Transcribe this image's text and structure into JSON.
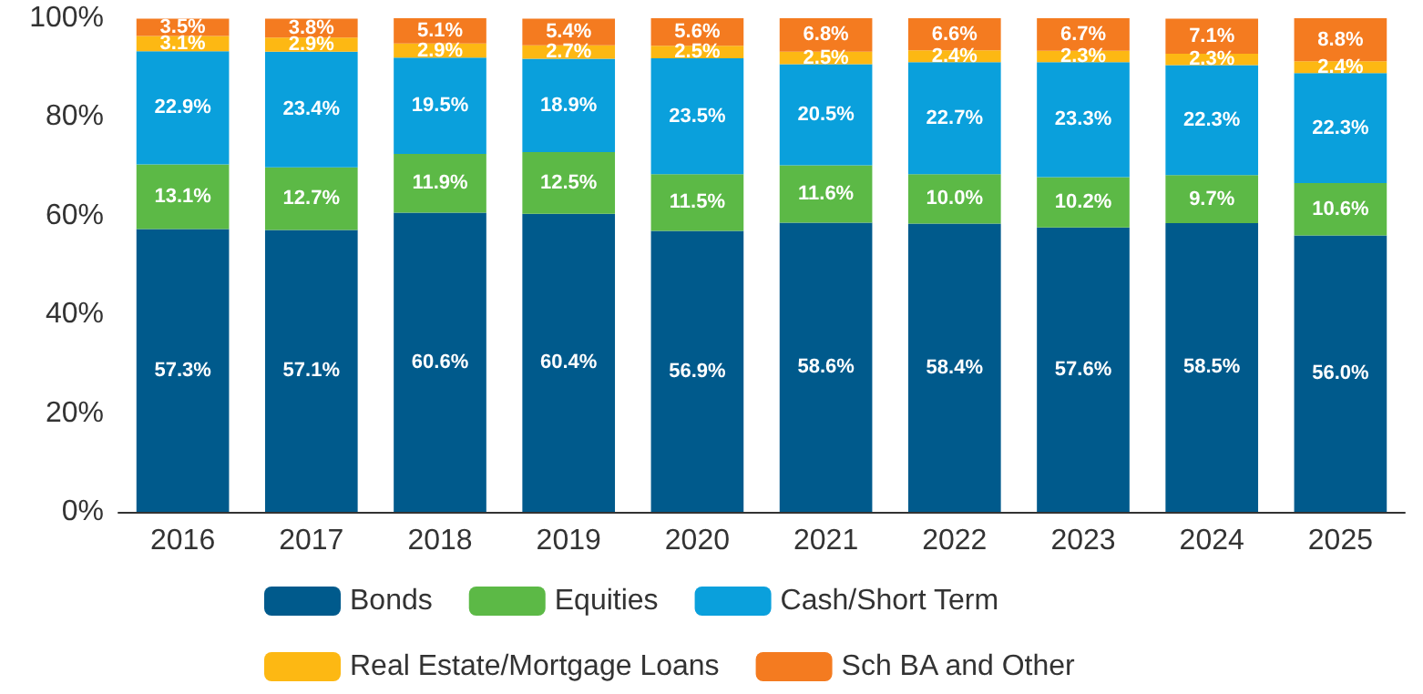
{
  "chart_data": {
    "type": "bar",
    "stacked": true,
    "categories": [
      "2016",
      "2017",
      "2018",
      "2019",
      "2020",
      "2021",
      "2022",
      "2023",
      "2024",
      "2025"
    ],
    "series": [
      {
        "name": "Bonds",
        "color": "#005a8c",
        "values": [
          57.3,
          57.1,
          60.6,
          60.4,
          56.9,
          58.6,
          58.4,
          57.6,
          58.5,
          56.0
        ],
        "value_labels": [
          "57.3%",
          "57.1%",
          "60.6%",
          "60.4%",
          "56.9%",
          "58.6%",
          "58.4%",
          "57.6%",
          "58.5%",
          "56.0%"
        ]
      },
      {
        "name": "Equities",
        "color": "#5cb946",
        "values": [
          13.1,
          12.7,
          11.9,
          12.5,
          11.5,
          11.6,
          10.0,
          10.2,
          9.7,
          10.6
        ],
        "value_labels": [
          "13.1%",
          "12.7%",
          "11.9%",
          "12.5%",
          "11.5%",
          "11.6%",
          "10.0%",
          "10.2%",
          "9.7%",
          "10.6%"
        ]
      },
      {
        "name": "Cash/Short Term",
        "color": "#0aa0dc",
        "values": [
          22.9,
          23.4,
          19.5,
          18.9,
          23.5,
          20.5,
          22.7,
          23.3,
          22.3,
          22.3
        ],
        "value_labels": [
          "22.9%",
          "23.4%",
          "19.5%",
          "18.9%",
          "23.5%",
          "20.5%",
          "22.7%",
          "23.3%",
          "22.3%",
          "22.3%"
        ]
      },
      {
        "name": "Real Estate/Mortgage Loans",
        "color": "#fdb813",
        "values": [
          3.1,
          2.9,
          2.9,
          2.7,
          2.5,
          2.5,
          2.4,
          2.3,
          2.3,
          2.4
        ],
        "value_labels": [
          "3.1%",
          "2.9%",
          "2.9%",
          "2.7%",
          "2.5%",
          "2.5%",
          "2.4%",
          "2.3%",
          "2.3%",
          "2.4%"
        ]
      },
      {
        "name": "Sch BA and Other",
        "color": "#f47b20",
        "values": [
          3.5,
          3.8,
          5.1,
          5.4,
          5.6,
          6.8,
          6.6,
          6.7,
          7.1,
          8.8
        ],
        "value_labels": [
          "3.5%",
          "3.8%",
          "5.1%",
          "5.4%",
          "5.6%",
          "6.8%",
          "6.6%",
          "6.7%",
          "7.1%",
          "8.8%"
        ]
      }
    ],
    "ylim": [
      0,
      100
    ],
    "yticks": [
      {
        "value": 0,
        "label": "0%"
      },
      {
        "value": 20,
        "label": "20%"
      },
      {
        "value": 40,
        "label": "40%"
      },
      {
        "value": 60,
        "label": "60%"
      },
      {
        "value": 80,
        "label": "80%"
      },
      {
        "value": 100,
        "label": "100%"
      }
    ],
    "grid": false,
    "legend": "bottom"
  }
}
